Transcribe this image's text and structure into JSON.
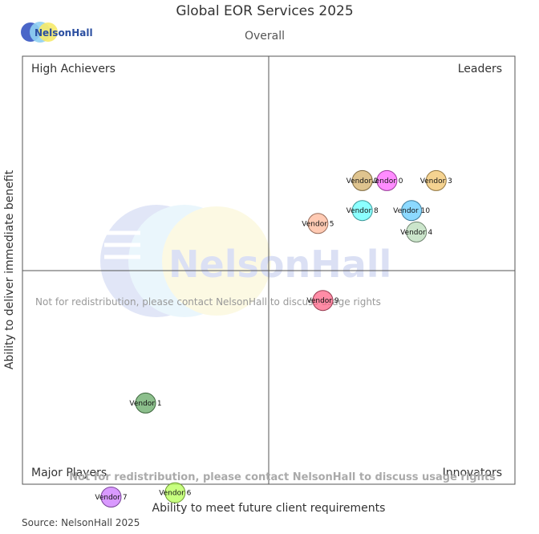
{
  "logo_text": "NelsonHall",
  "chart_data": {
    "type": "scatter",
    "title": "Global EOR Services 2025",
    "subtitle": "Overall",
    "xlabel": "Ability to meet future client requirements",
    "ylabel": "Ability to deliver immediate benefit",
    "xlim": [
      0,
      10
    ],
    "ylim": [
      0,
      10
    ],
    "grid": false,
    "quadrants": {
      "top_left": "High Achievers",
      "top_right": "Leaders",
      "bottom_left": "Major Players",
      "bottom_right": "Innovators"
    },
    "watermark_notice": "Not for redistribution, please contact NelsonHall to discuss usage rights",
    "watermark_brand": "NelsonHall",
    "source": "Source: NelsonHall 2025",
    "series": [
      {
        "label": "Vendor 0",
        "x": 7.4,
        "y": 7.1,
        "color": "#ff66ff"
      },
      {
        "label": "Vendor 2",
        "x": 6.9,
        "y": 7.1,
        "color": "#d4b06a"
      },
      {
        "label": "Vendor 3",
        "x": 8.4,
        "y": 7.1,
        "color": "#f2c46c"
      },
      {
        "label": "Vendor 8",
        "x": 6.9,
        "y": 6.4,
        "color": "#66ffff"
      },
      {
        "label": "Vendor 10",
        "x": 7.9,
        "y": 6.4,
        "color": "#66ccff"
      },
      {
        "label": "Vendor 5",
        "x": 6.0,
        "y": 6.1,
        "color": "#ffb89a"
      },
      {
        "label": "Vendor 4",
        "x": 8.0,
        "y": 5.9,
        "color": "#b9dcb9"
      },
      {
        "label": "Vendor 9",
        "x": 6.1,
        "y": 4.3,
        "color": "#ff6688"
      },
      {
        "label": "Vendor 1",
        "x": 2.5,
        "y": 1.9,
        "color": "#66aa66"
      },
      {
        "label": "Vendor 6",
        "x": 3.1,
        "y": -0.2,
        "color": "#b6ff55"
      },
      {
        "label": "Vendor 7",
        "x": 1.8,
        "y": -0.3,
        "color": "#cc77ff"
      }
    ]
  }
}
